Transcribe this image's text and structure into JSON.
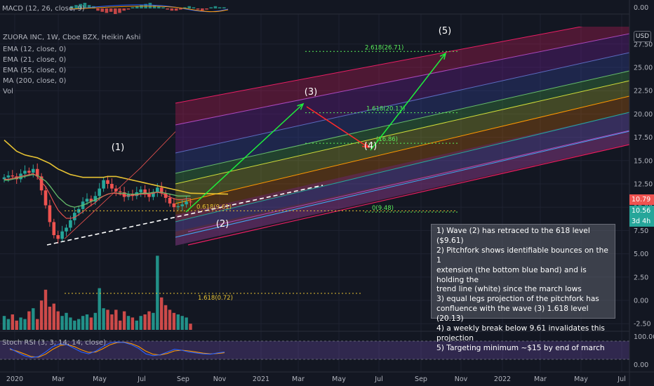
{
  "chart_data": {
    "type": "candlestick",
    "symbol_title": "ZUORA INC, 1W, Cboe BZX, Heikin Ashi",
    "currency": "USD",
    "indicators": [
      "EMA (12, close, 0)",
      "EMA (21, close, 0)",
      "EMA (55, close, 0)",
      "MA (200, close, 0)",
      "Vol"
    ],
    "macd_label": "MACD (12, 26, close, 9)",
    "stoch_label": "Stoch RSI (3, 3, 14, 14, close)",
    "x_ticks": [
      "2020",
      "Mar",
      "May",
      "Jul",
      "Sep",
      "Nov",
      "2021",
      "Mar",
      "May",
      "Jul",
      "Sep",
      "Nov",
      "2022",
      "Mar",
      "May",
      "Jul"
    ],
    "y_ticks": [
      "27.50",
      "25.00",
      "22.50",
      "20.00",
      "17.50",
      "15.00",
      "12.50",
      "10.00",
      "7.50",
      "5.00",
      "2.50",
      "0.00",
      "-2.50"
    ],
    "macd_ticks": [
      "0.00"
    ],
    "stoch_ticks": [
      "100.00",
      "0.00"
    ],
    "price_tags": [
      {
        "value": "10.79",
        "color": "#ef5350"
      },
      {
        "value": "10.56",
        "color": "#26a69a"
      },
      {
        "value": "3d 4h",
        "color": "#26a69a"
      }
    ],
    "weekly_close": [
      13.2,
      13.4,
      13.3,
      13.0,
      13.6,
      13.9,
      13.7,
      14.1,
      13.3,
      11.8,
      10.2,
      8.4,
      7.0,
      6.6,
      7.4,
      7.8,
      8.6,
      9.4,
      9.8,
      10.6,
      10.9,
      10.6,
      11.2,
      12.0,
      12.9,
      12.5,
      12.0,
      11.7,
      11.6,
      11.1,
      11.4,
      11.2,
      11.6,
      11.9,
      11.4,
      11.1,
      11.6,
      12.1,
      11.5,
      11.0,
      10.4,
      10.0,
      10.1,
      10.3,
      10.6,
      10.56
    ],
    "ema12": [
      13.0,
      13.0,
      13.1,
      13.2,
      13.3,
      13.4,
      13.5,
      13.6,
      13.3,
      12.7,
      12.2,
      11.4,
      10.5,
      9.7,
      9.2,
      8.8,
      8.8,
      8.9,
      9.2,
      9.5,
      9.9,
      10.2,
      10.5,
      10.9,
      11.2,
      11.4,
      11.5,
      11.5,
      11.4,
      11.3,
      11.2,
      11.3,
      11.3,
      11.4,
      11.4,
      11.4,
      11.5,
      11.6,
      11.5,
      11.3,
      11.1,
      10.9,
      10.8,
      10.8,
      10.9,
      10.9
    ],
    "ema21": [
      12.9,
      12.9,
      13.0,
      13.1,
      13.2,
      13.3,
      13.4,
      13.5,
      13.4,
      13.1,
      12.8,
      12.3,
      11.7,
      11.1,
      10.7,
      10.3,
      10.1,
      10.0,
      10.1,
      10.2,
      10.4,
      10.6,
      10.8,
      11.0,
      11.2,
      11.4,
      11.5,
      11.5,
      11.5,
      11.5,
      11.4,
      11.4,
      11.4,
      11.5,
      11.5,
      11.5,
      11.6,
      11.6,
      11.6,
      11.5,
      11.4,
      11.3,
      11.2,
      11.2,
      11.2,
      11.2
    ],
    "ema55": [
      17.2,
      16.8,
      16.4,
      16.0,
      15.8,
      15.6,
      15.5,
      15.4,
      15.3,
      15.1,
      14.9,
      14.7,
      14.4,
      14.1,
      13.9,
      13.7,
      13.5,
      13.4,
      13.3,
      13.2,
      13.2,
      13.2,
      13.2,
      13.2,
      13.2,
      13.3,
      13.3,
      13.3,
      13.2,
      13.1,
      13.0,
      12.9,
      12.8,
      12.7,
      12.6,
      12.5,
      12.4,
      12.3,
      12.2,
      12.1,
      12.0,
      11.9,
      11.8,
      11.7,
      11.6,
      11.5
    ],
    "volume": [
      0.9,
      0.7,
      1.0,
      0.6,
      0.8,
      0.7,
      1.2,
      1.4,
      0.7,
      1.9,
      2.6,
      1.5,
      1.7,
      1.2,
      0.9,
      1.1,
      0.8,
      0.6,
      0.7,
      0.9,
      1.0,
      0.8,
      1.1,
      2.7,
      1.4,
      1.3,
      1.0,
      1.3,
      0.6,
      1.2,
      0.9,
      0.8,
      0.6,
      0.9,
      1.0,
      1.2,
      1.1,
      4.8,
      2.1,
      1.6,
      1.3,
      1.1,
      1.0,
      0.9,
      0.8,
      0.4
    ],
    "volume_fib": {
      "label": "1.618(0.72)",
      "value": 0.72
    },
    "fib_levels": [
      {
        "label": "2.618(26.71)",
        "value": 26.71
      },
      {
        "label": "1.618(20.13)",
        "value": 20.13
      },
      {
        "label": "(16.86)",
        "value": 16.86
      },
      {
        "label": "0(9.48)",
        "value": 9.48
      },
      {
        "label": "0.618(9.61)",
        "value": 9.61
      }
    ],
    "waves": [
      "(1)",
      "(2)",
      "(3)",
      "(4)",
      "(5)"
    ]
  },
  "annotation": {
    "lines": [
      "1) Wave (2) has retraced to the 618 level ($9.61)",
      "2) Pitchfork shows identifiable bounces on the 1",
      "extension (the bottom blue band) and is holding the",
      "trend line (white) since the march lows",
      "3) equal legs projection of the pitchfork has",
      "confluence with the wave (3) 1.618 level (20.13)",
      "4) a weekly break below 9.61 invalidates this",
      "projection",
      "5) Targeting minimum ~$15 by end of march"
    ]
  },
  "colors": {
    "background": "#131722",
    "up": "#26a69a",
    "down": "#ef5350",
    "ma200": "#e6c233",
    "projection_up": "#1ef03c",
    "projection_down": "#ff2a2a"
  }
}
